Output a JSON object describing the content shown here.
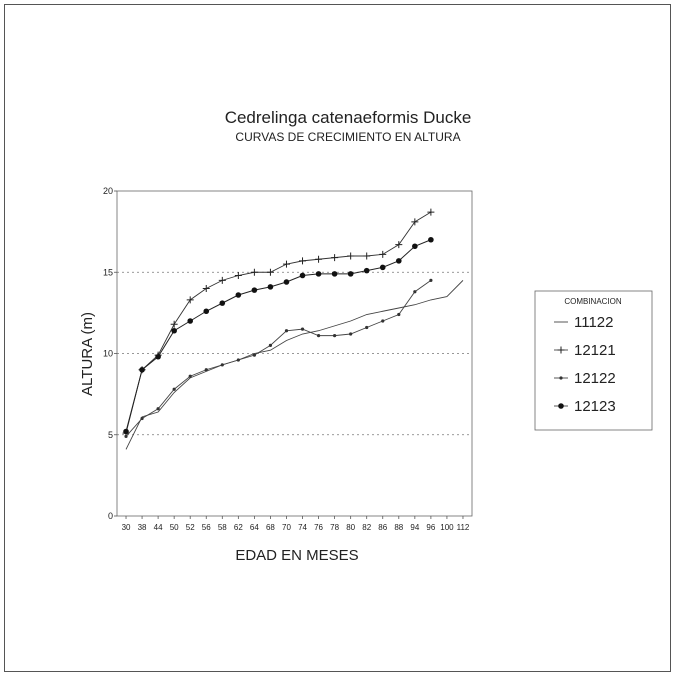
{
  "chart_data": {
    "type": "line",
    "title": "Cedrelinga catenaeformis Ducke",
    "subtitle": "CURVAS DE CRECIMIENTO EN ALTURA",
    "xlabel": "EDAD EN MESES",
    "ylabel": "ALTURA (m)",
    "ylim": [
      0,
      20
    ],
    "yticks": [
      "0",
      "5",
      "10",
      "15",
      "20"
    ],
    "grid": "dotted horizontal at 5, 10, 15",
    "categories": [
      "30",
      "38",
      "44",
      "50",
      "52",
      "56",
      "58",
      "62",
      "64",
      "68",
      "70",
      "74",
      "76",
      "78",
      "80",
      "82",
      "86",
      "88",
      "94",
      "96",
      "100",
      "112"
    ],
    "legend_title": "COMBINACION",
    "legend_position": "right",
    "series": [
      {
        "name": "11122",
        "marker": "none",
        "values": [
          4.1,
          6.1,
          6.4,
          7.6,
          8.5,
          8.9,
          9.3,
          9.6,
          10.0,
          10.2,
          10.8,
          11.2,
          11.4,
          11.7,
          12.0,
          12.4,
          12.6,
          12.8,
          13.0,
          13.3,
          13.5,
          14.5
        ]
      },
      {
        "name": "12121",
        "marker": "plus",
        "values": [
          5.1,
          9.0,
          9.9,
          11.8,
          13.3,
          14.0,
          14.5,
          14.8,
          15.0,
          15.0,
          15.5,
          15.7,
          15.8,
          15.9,
          16.0,
          16.0,
          16.1,
          16.7,
          18.1,
          18.7,
          null,
          null
        ]
      },
      {
        "name": "12122",
        "marker": "small-dot",
        "values": [
          4.9,
          6.0,
          6.6,
          7.8,
          8.6,
          9.0,
          9.3,
          9.6,
          9.9,
          10.5,
          11.4,
          11.5,
          11.1,
          11.1,
          11.2,
          11.6,
          12.0,
          12.4,
          13.8,
          14.5,
          null,
          null
        ]
      },
      {
        "name": "12123",
        "marker": "dot",
        "values": [
          5.2,
          9.0,
          9.8,
          11.4,
          12.0,
          12.6,
          13.1,
          13.6,
          13.9,
          14.1,
          14.4,
          14.8,
          14.9,
          14.9,
          14.9,
          15.1,
          15.3,
          15.7,
          16.6,
          17.0,
          null,
          null
        ]
      }
    ]
  }
}
